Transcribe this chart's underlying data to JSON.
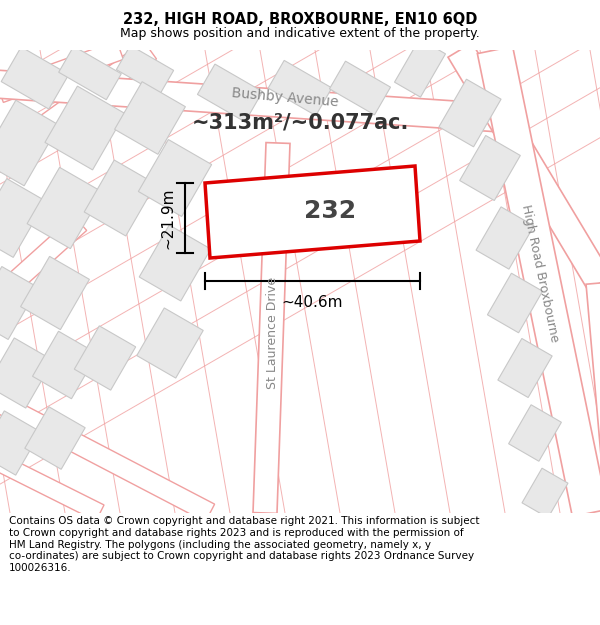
{
  "title": "232, HIGH ROAD, BROXBOURNE, EN10 6QD",
  "subtitle": "Map shows position and indicative extent of the property.",
  "footer": "Contains OS data © Crown copyright and database right 2021. This information is subject\nto Crown copyright and database rights 2023 and is reproduced with the permission of\nHM Land Registry. The polygons (including the associated geometry, namely x, y\nco-ordinates) are subject to Crown copyright and database rights 2023 Ordnance Survey\n100026316.",
  "map_bg": "#ffffff",
  "building_fill": "#e8e8e8",
  "building_edge": "#c8c8c8",
  "road_color": "#f0a0a0",
  "highlight_fill": "#ffffff",
  "highlight_border": "#dd0000",
  "label_232": "232",
  "area_label": "~313m²/~0.077ac.",
  "dim_width": "~40.6m",
  "dim_height": "~21.9m",
  "street_bushby": "Bushby Avenue",
  "street_high_road": "High Road Broxbourne",
  "street_st_laurence": "St Laurence Drive",
  "title_fontsize": 10.5,
  "subtitle_fontsize": 9,
  "footer_fontsize": 7.5
}
